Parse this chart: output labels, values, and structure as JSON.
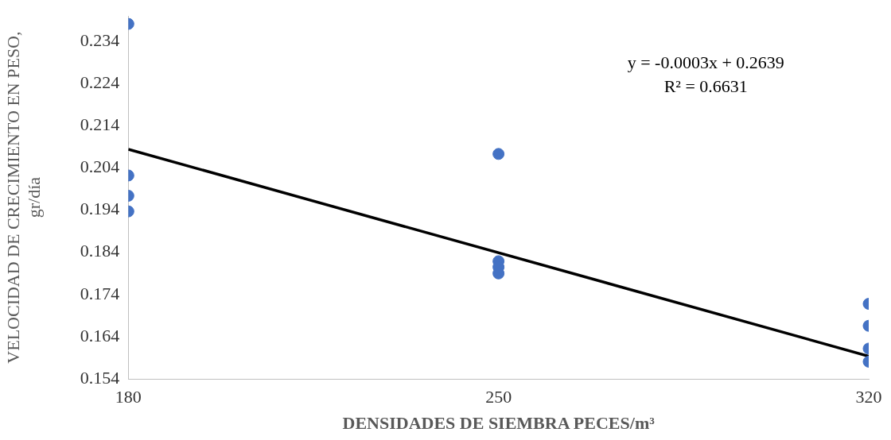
{
  "chart_data": {
    "type": "scatter",
    "xlabel": "DENSIDADES DE SIEMBRA PECES/m³",
    "ylabel": "VELOCIDAD DE CRECIMIENTO EN PESO,\ngr/día",
    "xlim": [
      180,
      320
    ],
    "xticks": [
      180,
      250,
      320
    ],
    "ylim": [
      0.154,
      0.24
    ],
    "yticks": [
      0.154,
      0.164,
      0.174,
      0.184,
      0.194,
      0.204,
      0.214,
      0.224,
      0.234
    ],
    "grid": false,
    "legend": false,
    "marker": "circle",
    "series": [
      {
        "color": "#4472c4",
        "x": [
          180,
          180,
          180,
          180,
          250,
          250,
          250,
          250,
          320,
          320,
          320,
          320
        ],
        "values": [
          0.2381,
          0.2022,
          0.1974,
          0.1937,
          0.2073,
          0.1819,
          0.1805,
          0.179,
          0.1718,
          0.1666,
          0.1612,
          0.1581
        ]
      },
      {
        "type": "line",
        "marker": "none",
        "color": "#000000",
        "x": [
          180,
          320
        ],
        "values": [
          0.2084,
          0.1594
        ]
      }
    ],
    "annotations": [
      "y = -0.0003x + 0.2639",
      "R² = 0.6631"
    ]
  }
}
